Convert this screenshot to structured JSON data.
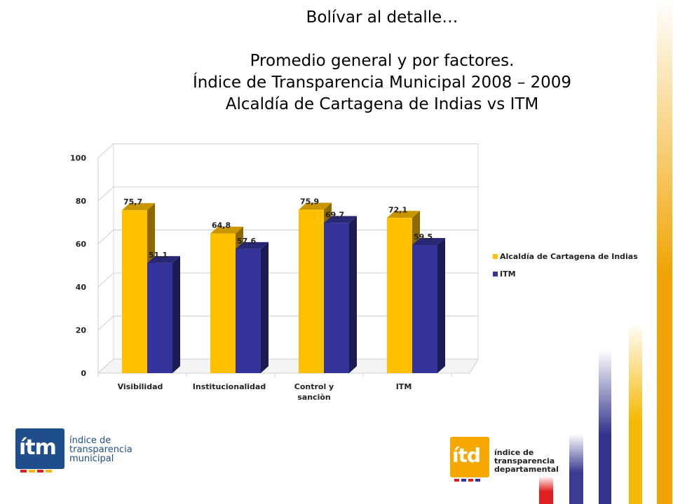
{
  "slide": {
    "heading": "Bolívar al detalle…",
    "subtitle_line1": "Promedio general y por factores.",
    "subtitle_line2": "Índice de Transparencia Municipal 2008 – 2009",
    "subtitle_line3": "Alcaldía de Cartagena de Indias vs ITM"
  },
  "chart_data": {
    "type": "bar",
    "title": "",
    "xlabel": "",
    "ylabel": "",
    "categories": [
      "Visibilidad",
      "Institucionalidad",
      "Control y sanciòn",
      "ITM"
    ],
    "category_lines": [
      [
        "Visibilidad"
      ],
      [
        "Institucionalidad"
      ],
      [
        "Control y",
        "sanciòn"
      ],
      [
        "ITM"
      ]
    ],
    "series": [
      {
        "name": "Alcaldía de Cartagena de Indias",
        "values": [
          75.7,
          64.8,
          75.9,
          72.1
        ],
        "labels": [
          "75,7",
          "64,8",
          "75,9",
          "72,1"
        ],
        "color": "#FFC000"
      },
      {
        "name": "ITM",
        "values": [
          51.1,
          57.6,
          69.7,
          59.5
        ],
        "labels": [
          "51,1",
          "57,6",
          "69,7",
          "59,5"
        ],
        "color": "#333399"
      }
    ],
    "yticks": [
      0,
      20,
      40,
      60,
      80,
      100
    ],
    "ylim": [
      0,
      100
    ],
    "style": "3d-clustered-column",
    "grid": true,
    "legend": "right"
  },
  "logos": {
    "left": {
      "mark": "ítm",
      "line1": "índice de",
      "line2": "transparencia",
      "line3": "municipal",
      "bg": "#1F4E8C"
    },
    "right": {
      "mark": "ítd",
      "line1": "índice de",
      "line2": "transparencia",
      "line3": "departamental",
      "bg": "#F5A800"
    }
  },
  "decor": {
    "stripes": [
      {
        "color": "#F0A300"
      },
      {
        "color": "#F5B800"
      },
      {
        "color": "#33338C"
      },
      {
        "color": "#3A3A90"
      },
      {
        "color": "#E02020"
      }
    ]
  }
}
